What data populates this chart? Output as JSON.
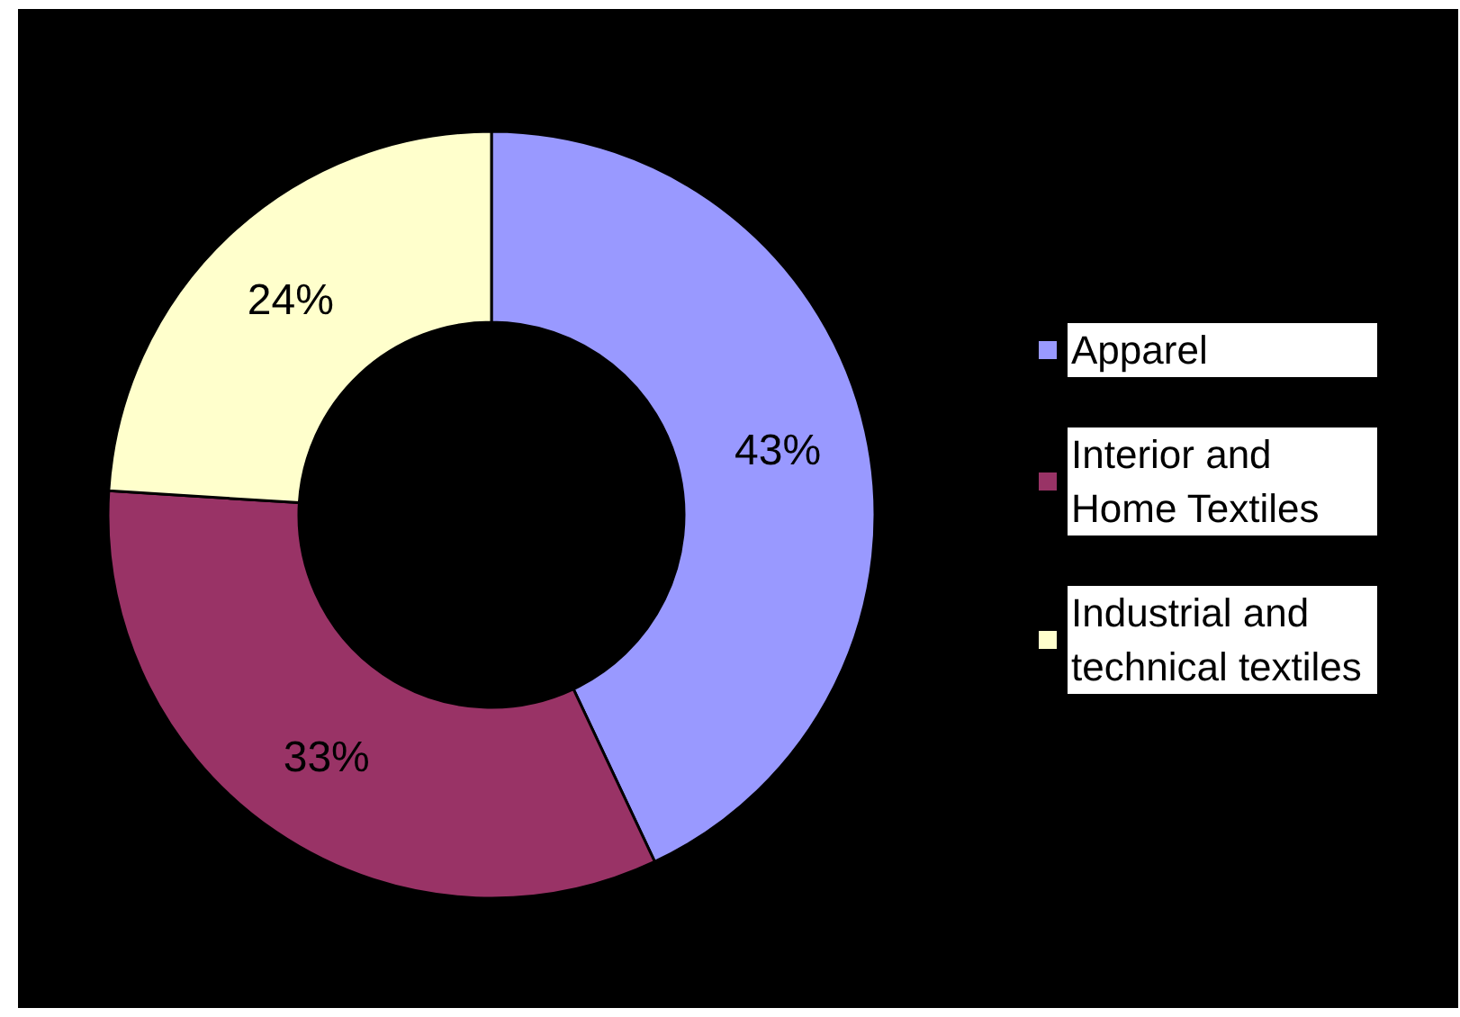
{
  "chart_data": {
    "type": "donut",
    "categories": [
      "Apparel",
      "Interior and Home Textiles",
      "Industrial and technical textiles"
    ],
    "values": [
      43,
      33,
      24
    ],
    "colors": [
      "#9999ff",
      "#993366",
      "#ffffcc"
    ],
    "value_labels": [
      "43%",
      "33%",
      "24%"
    ],
    "legend": "right"
  }
}
